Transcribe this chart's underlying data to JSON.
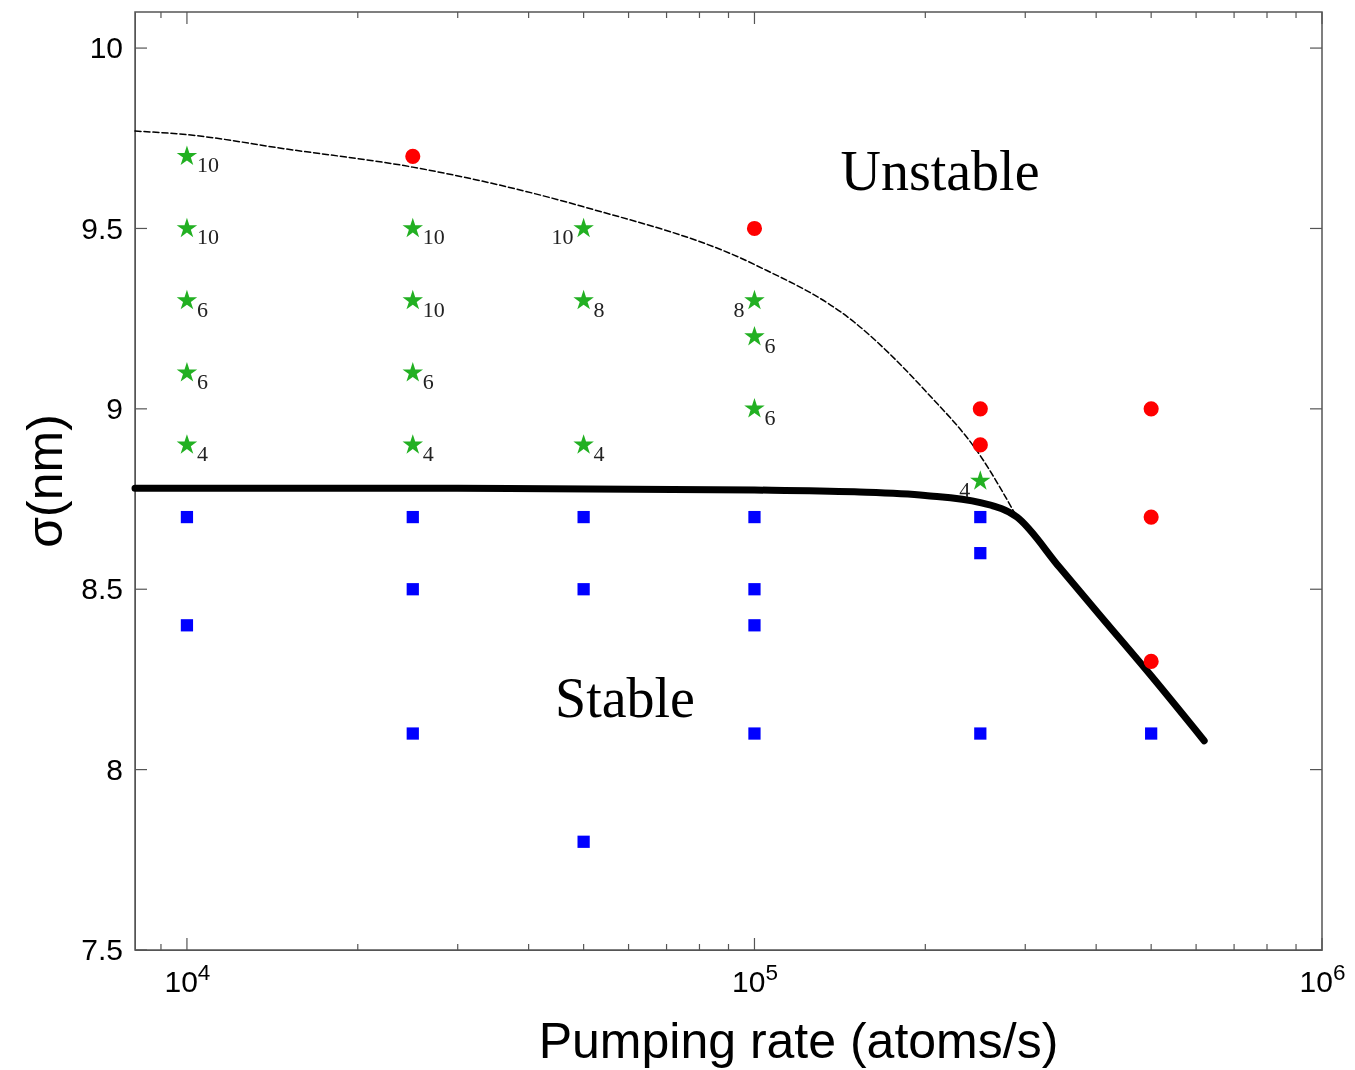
{
  "chart_data": {
    "type": "scatter",
    "xlabel": "Pumping rate (atoms/s)",
    "ylabel": "σ(nm)",
    "log": "x",
    "xlim": [
      8100,
      1000000
    ],
    "ylim": [
      7.5,
      10.1
    ],
    "xticks": [
      {
        "value": 9000,
        "label": null
      },
      {
        "value": 10000,
        "label": "10$^{4}$"
      },
      {
        "value": 20000,
        "label": null
      },
      {
        "value": 30000,
        "label": null
      },
      {
        "value": 40000,
        "label": null
      },
      {
        "value": 50000,
        "label": null
      },
      {
        "value": 60000,
        "label": null
      },
      {
        "value": 70000,
        "label": null
      },
      {
        "value": 80000,
        "label": null
      },
      {
        "value": 90000,
        "label": null
      },
      {
        "value": 100000,
        "label": "10$^{5}$"
      },
      {
        "value": 200000,
        "label": null
      },
      {
        "value": 300000,
        "label": null
      },
      {
        "value": 400000,
        "label": null
      },
      {
        "value": 500000,
        "label": null
      },
      {
        "value": 600000,
        "label": null
      },
      {
        "value": 700000,
        "label": null
      },
      {
        "value": 800000,
        "label": null
      },
      {
        "value": 900000,
        "label": null
      },
      {
        "value": 1000000,
        "label": "10$^{6}$"
      }
    ],
    "yticks": [
      7.5,
      8,
      8.5,
      9,
      9.5,
      10
    ],
    "annotations": [
      "Unstable",
      "Stable",
      {
        "text": "10",
        "x": 10000,
        "y": 9.7
      },
      {
        "text": "10",
        "x": 10000,
        "y": 9.5
      },
      {
        "text": "6",
        "x": 10000,
        "y": 9.3
      },
      {
        "text": "6",
        "x": 10000,
        "y": 9.1
      },
      {
        "text": "4",
        "x": 10000,
        "y": 8.9
      },
      {
        "text": "10",
        "x": 25000,
        "y": 9.5
      },
      {
        "text": "10",
        "x": 25000,
        "y": 9.3
      },
      {
        "text": "6",
        "x": 25000,
        "y": 9.1
      },
      {
        "text": "4",
        "x": 25000,
        "y": 8.9
      },
      {
        "text": "10",
        "x": 50000,
        "y": 9.5
      },
      {
        "text": "8",
        "x": 50000,
        "y": 9.3
      },
      {
        "text": "4",
        "x": 50000,
        "y": 8.9
      },
      {
        "text": "8",
        "x": 100000,
        "y": 9.3
      },
      {
        "text": "6",
        "x": 100000,
        "y": 9.2
      },
      {
        "text": "6",
        "x": 100000,
        "y": 9.0
      },
      {
        "text": "4",
        "x": 250000,
        "y": 8.8
      }
    ],
    "series": [
      {
        "type": "line",
        "color": "#000000",
        "line_style": "dashed",
        "marker": "none",
        "x": [
          8100,
          10000,
          15000,
          25000,
          50000,
          100000,
          150000,
          200000,
          250000,
          290000
        ],
        "values": [
          9.77,
          9.76,
          9.72,
          9.67,
          9.56,
          9.4,
          9.24,
          9.05,
          8.87,
          8.7
        ]
      },
      {
        "type": "line",
        "color": "#000000",
        "line_style": "solid",
        "marker": "none",
        "x": [
          8100,
          30000,
          100000,
          150000,
          200000,
          250000,
          290000,
          345000,
          405000,
          500000,
          620000
        ],
        "values": [
          8.78,
          8.78,
          8.775,
          8.77,
          8.76,
          8.74,
          8.7,
          8.56,
          8.43,
          8.26,
          8.08
        ]
      },
      {
        "color": "#22b022",
        "marker": "star",
        "x": [
          10000,
          10000,
          10000,
          10000,
          10000,
          25000,
          25000,
          25000,
          25000,
          50000,
          50000,
          50000,
          100000,
          100000,
          100000,
          250000
        ],
        "values": [
          9.7,
          9.5,
          9.3,
          9.1,
          8.9,
          9.5,
          9.3,
          9.1,
          8.9,
          9.5,
          9.3,
          8.9,
          9.3,
          9.2,
          9.0,
          8.8
        ]
      },
      {
        "color": "#ff0000",
        "marker": "circle",
        "x": [
          25000,
          100000,
          250000,
          250000,
          500000,
          500000,
          500000
        ],
        "values": [
          9.7,
          9.5,
          9.0,
          8.9,
          9.0,
          8.7,
          8.3
        ]
      },
      {
        "color": "#0000ff",
        "marker": "square",
        "x": [
          10000,
          10000,
          25000,
          25000,
          25000,
          50000,
          50000,
          50000,
          100000,
          100000,
          100000,
          100000,
          250000,
          250000,
          250000,
          500000
        ],
        "values": [
          8.7,
          8.4,
          8.7,
          8.5,
          8.1,
          8.7,
          8.5,
          7.8,
          8.7,
          8.5,
          8.4,
          8.1,
          8.7,
          8.6,
          8.1,
          8.1
        ]
      }
    ]
  }
}
